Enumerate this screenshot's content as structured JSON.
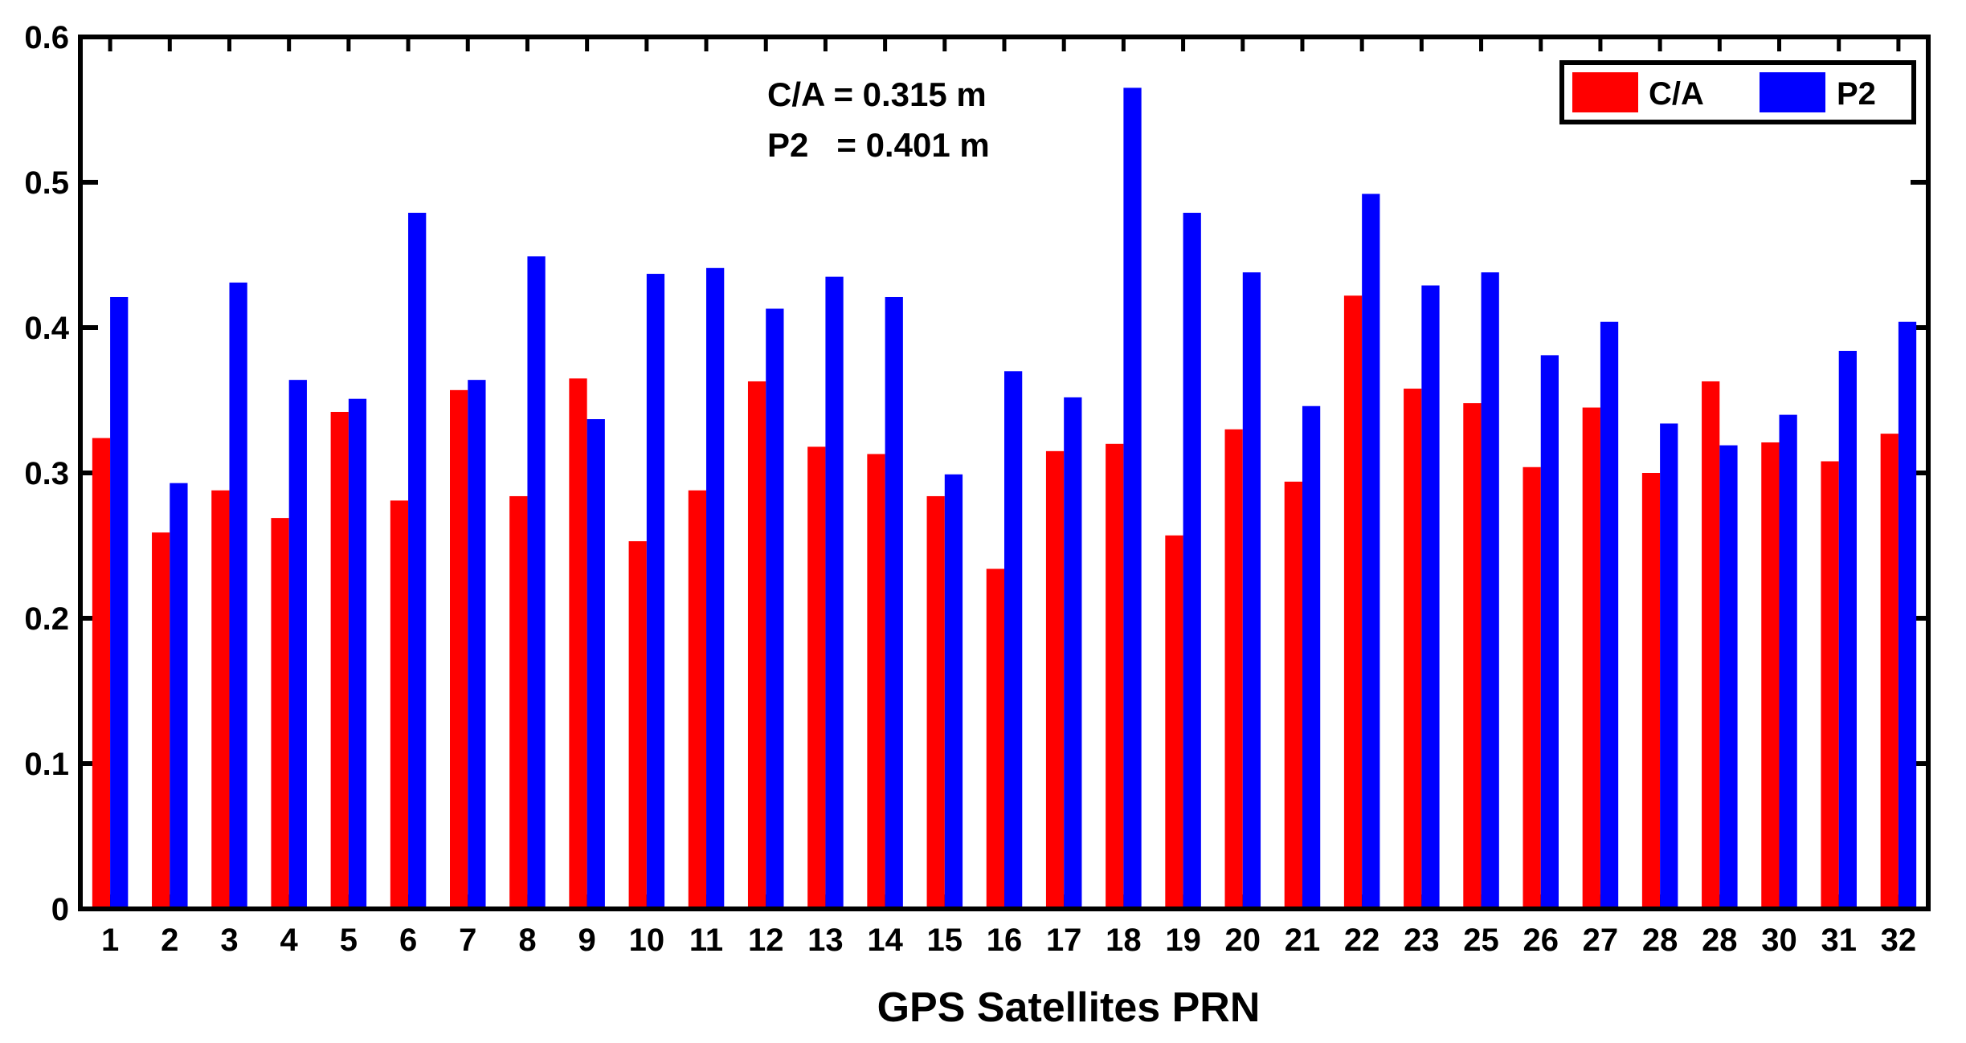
{
  "chart_data": {
    "type": "bar",
    "xlabel": "GPS Satellites PRN",
    "ylabel": "",
    "ylim": [
      0,
      0.6
    ],
    "yticks": [
      "0",
      "0.1",
      "0.2",
      "0.3",
      "0.4",
      "0.5",
      "0.6"
    ],
    "categories": [
      "1",
      "2",
      "3",
      "4",
      "5",
      "6",
      "7",
      "8",
      "9",
      "10",
      "11",
      "12",
      "13",
      "14",
      "15",
      "16",
      "17",
      "18",
      "19",
      "20",
      "21",
      "22",
      "23",
      "25",
      "26",
      "27",
      "28",
      "28",
      "30",
      "31",
      "32"
    ],
    "series": [
      {
        "name": "C/A",
        "color": "#ff0000",
        "values": [
          0.324,
          0.259,
          0.288,
          0.269,
          0.342,
          0.281,
          0.357,
          0.284,
          0.365,
          0.253,
          0.288,
          0.363,
          0.318,
          0.313,
          0.284,
          0.234,
          0.315,
          0.32,
          0.257,
          0.33,
          0.294,
          0.422,
          0.358,
          0.348,
          0.304,
          0.345,
          0.3,
          0.363,
          0.321,
          0.308,
          0.327
        ]
      },
      {
        "name": "P2",
        "color": "#0000ff",
        "values": [
          0.421,
          0.293,
          0.431,
          0.364,
          0.351,
          0.479,
          0.364,
          0.449,
          0.337,
          0.437,
          0.441,
          0.413,
          0.435,
          0.421,
          0.299,
          0.37,
          0.352,
          0.565,
          0.479,
          0.438,
          0.346,
          0.492,
          0.429,
          0.438,
          0.381,
          0.404,
          0.334,
          0.319,
          0.34,
          0.384,
          0.404
        ]
      }
    ],
    "legend_position": "top-right",
    "annotations": [
      "C/A =  0.315 m",
      "P2   = 0.401 m"
    ]
  }
}
